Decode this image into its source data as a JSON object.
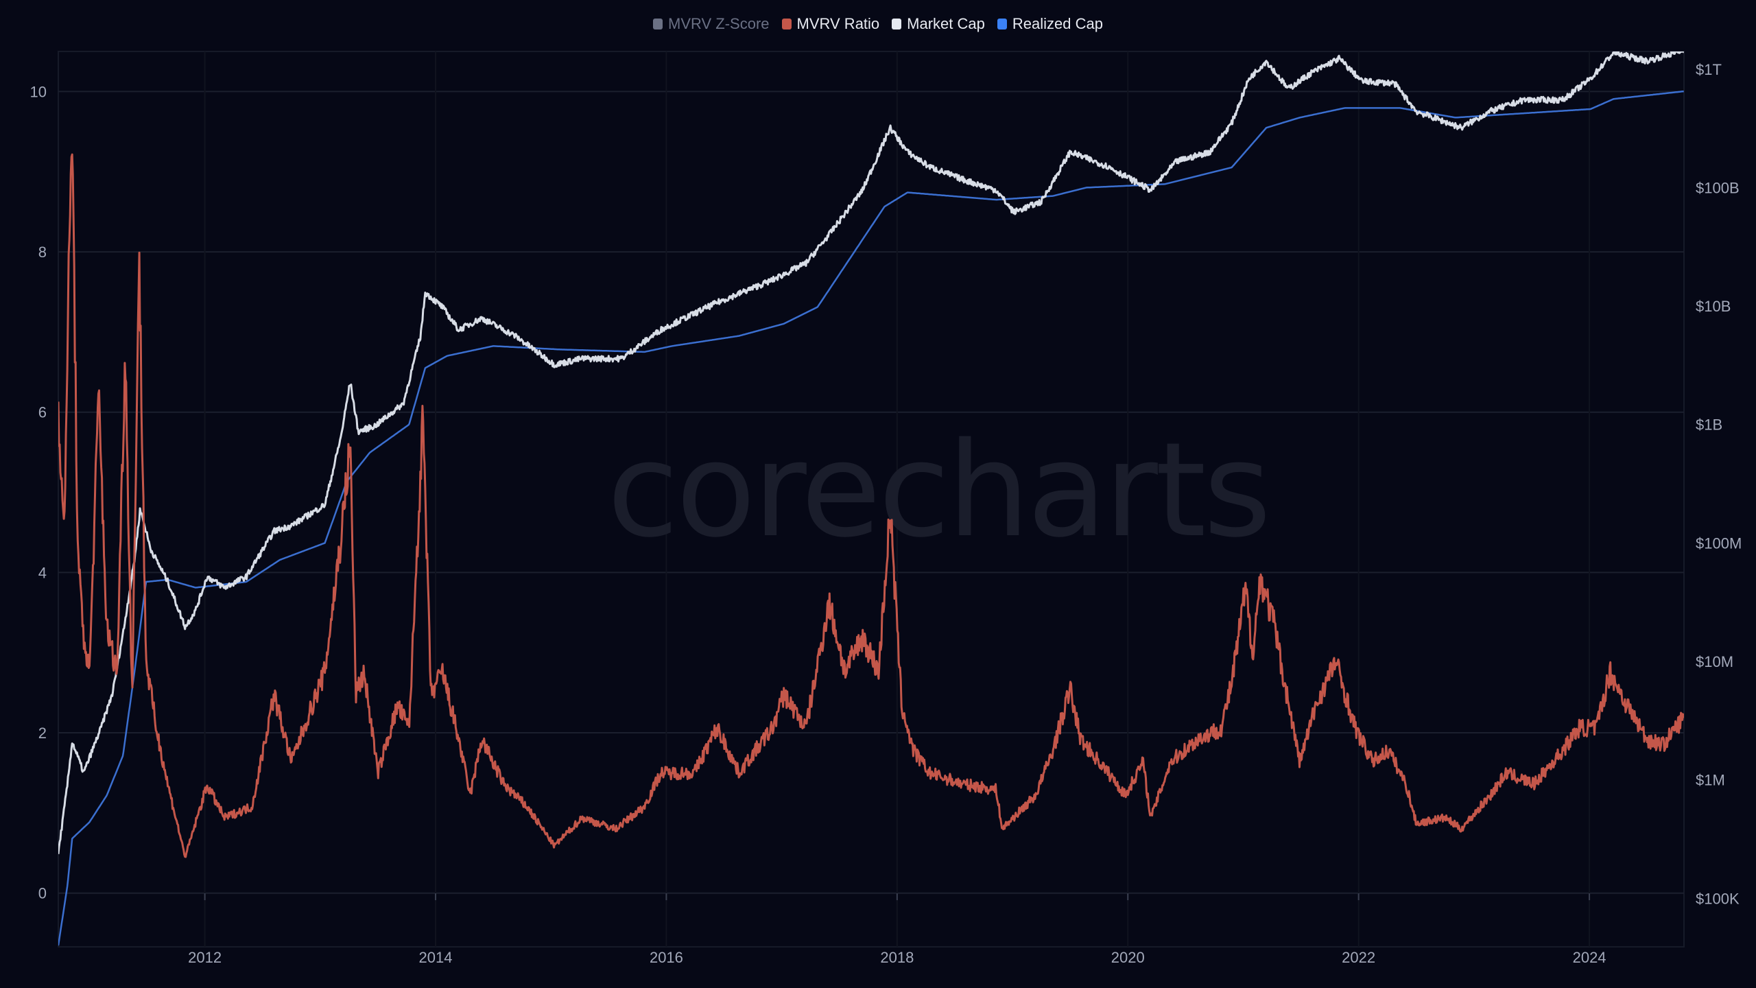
{
  "legend": [
    {
      "label": "MVRV Z-Score",
      "color": "#6b7185",
      "text_color": "#6b7185",
      "visible": false
    },
    {
      "label": "MVRV Ratio",
      "color": "#c4574a",
      "text_color": "#e8ebf2",
      "visible": true
    },
    {
      "label": "Market Cap",
      "color": "#e6eaf2",
      "text_color": "#e8ebf2",
      "visible": true
    },
    {
      "label": "Realized Cap",
      "color": "#3b82f6",
      "text_color": "#e8ebf2",
      "visible": true
    }
  ],
  "watermark": "corecharts",
  "chart_data": {
    "type": "line",
    "x_ticks": [
      "2012",
      "2014",
      "2016",
      "2018",
      "2020",
      "2022",
      "2024"
    ],
    "xlim": [
      2010.73,
      2024.82
    ],
    "left_axis": {
      "ticks": [
        "0",
        "2",
        "4",
        "6",
        "8",
        "10"
      ],
      "ylim": [
        -0.67,
        10.5
      ],
      "scale": "linear"
    },
    "right_axis": {
      "ticks": [
        "$100K",
        "$1M",
        "$10M",
        "$100M",
        "$1B",
        "$10B",
        "$100B",
        "$1T"
      ],
      "ylim": [
        39000,
        1410000000000
      ],
      "scale": "log"
    },
    "grid": true,
    "legend_position": "top",
    "series": [
      {
        "name": "MVRV Ratio",
        "axis": "left",
        "color": "#c4574a",
        "points": [
          [
            2010.73,
            6.1
          ],
          [
            2010.78,
            4.4
          ],
          [
            2010.81,
            6.95
          ],
          [
            2010.85,
            9.54
          ],
          [
            2010.9,
            4.15
          ],
          [
            2010.95,
            3.2
          ],
          [
            2011.0,
            2.75
          ],
          [
            2011.08,
            6.25
          ],
          [
            2011.15,
            3.3
          ],
          [
            2011.24,
            2.75
          ],
          [
            2011.31,
            6.8
          ],
          [
            2011.37,
            2.4
          ],
          [
            2011.43,
            7.96
          ],
          [
            2011.49,
            2.9
          ],
          [
            2011.58,
            2.05
          ],
          [
            2011.68,
            1.35
          ],
          [
            2011.83,
            0.45
          ],
          [
            2012.02,
            1.35
          ],
          [
            2012.17,
            0.94
          ],
          [
            2012.41,
            1.08
          ],
          [
            2012.6,
            2.48
          ],
          [
            2012.75,
            1.64
          ],
          [
            2013.04,
            2.76
          ],
          [
            2013.18,
            4.43
          ],
          [
            2013.26,
            5.6
          ],
          [
            2013.31,
            2.48
          ],
          [
            2013.38,
            2.76
          ],
          [
            2013.5,
            1.5
          ],
          [
            2013.67,
            2.34
          ],
          [
            2013.77,
            2.06
          ],
          [
            2013.89,
            5.9
          ],
          [
            2013.96,
            2.48
          ],
          [
            2014.06,
            2.76
          ],
          [
            2014.2,
            1.92
          ],
          [
            2014.3,
            1.22
          ],
          [
            2014.4,
            1.92
          ],
          [
            2014.59,
            1.36
          ],
          [
            2014.79,
            1.08
          ],
          [
            2015.03,
            0.59
          ],
          [
            2015.27,
            0.94
          ],
          [
            2015.56,
            0.8
          ],
          [
            2015.81,
            1.08
          ],
          [
            2015.95,
            1.5
          ],
          [
            2016.24,
            1.5
          ],
          [
            2016.44,
            2.06
          ],
          [
            2016.63,
            1.5
          ],
          [
            2016.92,
            2.06
          ],
          [
            2017.02,
            2.48
          ],
          [
            2017.21,
            2.06
          ],
          [
            2017.41,
            3.62
          ],
          [
            2017.55,
            2.76
          ],
          [
            2017.7,
            3.2
          ],
          [
            2017.84,
            2.76
          ],
          [
            2017.94,
            4.78
          ],
          [
            2018.04,
            2.34
          ],
          [
            2018.14,
            1.78
          ],
          [
            2018.28,
            1.5
          ],
          [
            2018.57,
            1.36
          ],
          [
            2018.86,
            1.29
          ],
          [
            2018.91,
            0.8
          ],
          [
            2019.2,
            1.22
          ],
          [
            2019.35,
            1.78
          ],
          [
            2019.5,
            2.55
          ],
          [
            2019.59,
            1.92
          ],
          [
            2019.83,
            1.5
          ],
          [
            2019.98,
            1.22
          ],
          [
            2020.13,
            1.64
          ],
          [
            2020.2,
            0.94
          ],
          [
            2020.37,
            1.64
          ],
          [
            2020.61,
            1.92
          ],
          [
            2020.81,
            2.06
          ],
          [
            2020.9,
            2.62
          ],
          [
            2021.02,
            3.8
          ],
          [
            2021.08,
            3.0
          ],
          [
            2021.15,
            3.94
          ],
          [
            2021.27,
            3.34
          ],
          [
            2021.34,
            2.76
          ],
          [
            2021.49,
            1.64
          ],
          [
            2021.63,
            2.34
          ],
          [
            2021.8,
            2.9
          ],
          [
            2021.97,
            2.06
          ],
          [
            2022.12,
            1.64
          ],
          [
            2022.26,
            1.78
          ],
          [
            2022.41,
            1.36
          ],
          [
            2022.5,
            0.87
          ],
          [
            2022.75,
            0.94
          ],
          [
            2022.89,
            0.8
          ],
          [
            2023.14,
            1.22
          ],
          [
            2023.28,
            1.5
          ],
          [
            2023.52,
            1.36
          ],
          [
            2023.77,
            1.78
          ],
          [
            2023.91,
            2.06
          ],
          [
            2024.06,
            2.06
          ],
          [
            2024.18,
            2.76
          ],
          [
            2024.3,
            2.41
          ],
          [
            2024.5,
            1.92
          ],
          [
            2024.64,
            1.85
          ],
          [
            2024.82,
            2.2
          ]
        ]
      },
      {
        "name": "Market Cap",
        "axis": "right",
        "color": "#d8dde6",
        "points": [
          [
            2010.73,
            240000.0
          ],
          [
            2010.81,
            930000.0
          ],
          [
            2010.85,
            2100000.0
          ],
          [
            2010.95,
            1150000.0
          ],
          [
            2011.1,
            2750000.0
          ],
          [
            2011.2,
            5400000.0
          ],
          [
            2011.3,
            19500000.0
          ],
          [
            2011.39,
            72000000.0
          ],
          [
            2011.44,
            195000000.0
          ],
          [
            2011.53,
            89000000.0
          ],
          [
            2011.68,
            47000000.0
          ],
          [
            2011.83,
            19500000.0
          ],
          [
            2011.92,
            27000000.0
          ],
          [
            2012.02,
            52000000.0
          ],
          [
            2012.17,
            42000000.0
          ],
          [
            2012.36,
            52000000.0
          ],
          [
            2012.6,
            126000000.0
          ],
          [
            2012.75,
            140000000.0
          ],
          [
            2013.04,
            210000000.0
          ],
          [
            2013.18,
            790000000.0
          ],
          [
            2013.26,
            2300000000.0
          ],
          [
            2013.33,
            870000000.0
          ],
          [
            2013.48,
            980000000.0
          ],
          [
            2013.72,
            1500000000.0
          ],
          [
            2013.87,
            5600000000.0
          ],
          [
            2013.91,
            13000000000.0
          ],
          [
            2014.06,
            9800000000.0
          ],
          [
            2014.2,
            6300000000.0
          ],
          [
            2014.4,
            7900000000.0
          ],
          [
            2014.69,
            5600000000.0
          ],
          [
            2015.03,
            3200000000.0
          ],
          [
            2015.27,
            3600000000.0
          ],
          [
            2015.61,
            3600000000.0
          ],
          [
            2015.95,
            6300000000.0
          ],
          [
            2016.44,
            10700000000.0
          ],
          [
            2016.92,
            16600000000.0
          ],
          [
            2017.21,
            23000000000.0
          ],
          [
            2017.41,
            40000000000.0
          ],
          [
            2017.7,
            95000000000.0
          ],
          [
            2017.94,
            320000000000.0
          ],
          [
            2018.09,
            200000000000.0
          ],
          [
            2018.28,
            150000000000.0
          ],
          [
            2018.57,
            117000000000.0
          ],
          [
            2018.86,
            95000000000.0
          ],
          [
            2019.01,
            62000000000.0
          ],
          [
            2019.25,
            76000000000.0
          ],
          [
            2019.5,
            200000000000.0
          ],
          [
            2019.83,
            150000000000.0
          ],
          [
            2020.2,
            95000000000.0
          ],
          [
            2020.42,
            166000000000.0
          ],
          [
            2020.71,
            200000000000.0
          ],
          [
            2020.9,
            350000000000.0
          ],
          [
            2021.05,
            830000000000.0
          ],
          [
            2021.2,
            1170000000000.0
          ],
          [
            2021.39,
            680000000000.0
          ],
          [
            2021.59,
            930000000000.0
          ],
          [
            2021.83,
            1230000000000.0
          ],
          [
            2022.03,
            790000000000.0
          ],
          [
            2022.31,
            760000000000.0
          ],
          [
            2022.5,
            440000000000.0
          ],
          [
            2022.89,
            320000000000.0
          ],
          [
            2023.14,
            440000000000.0
          ],
          [
            2023.43,
            550000000000.0
          ],
          [
            2023.77,
            550000000000.0
          ],
          [
            2024.01,
            830000000000.0
          ],
          [
            2024.21,
            1380000000000.0
          ],
          [
            2024.5,
            1170000000000.0
          ],
          [
            2024.82,
            1450000000000.0
          ]
        ]
      },
      {
        "name": "Realized Cap",
        "axis": "right",
        "color": "#3b6fd0",
        "points": [
          [
            2010.73,
            40000.0
          ],
          [
            2010.81,
            130000.0
          ],
          [
            2010.85,
            320000.0
          ],
          [
            2011.0,
            440000.0
          ],
          [
            2011.15,
            740000.0
          ],
          [
            2011.29,
            1600000.0
          ],
          [
            2011.39,
            8100000.0
          ],
          [
            2011.49,
            47000000.0
          ],
          [
            2011.68,
            49000000.0
          ],
          [
            2011.92,
            42000000.0
          ],
          [
            2012.36,
            47000000.0
          ],
          [
            2012.65,
            72000000.0
          ],
          [
            2013.04,
            100000000.0
          ],
          [
            2013.23,
            330000000.0
          ],
          [
            2013.43,
            580000000.0
          ],
          [
            2013.77,
            1000000000.0
          ],
          [
            2013.91,
            3000000000.0
          ],
          [
            2014.1,
            3800000000.0
          ],
          [
            2014.5,
            4600000000.0
          ],
          [
            2015.08,
            4300000000.0
          ],
          [
            2015.81,
            4100000000.0
          ],
          [
            2016.05,
            4600000000.0
          ],
          [
            2016.63,
            5600000000.0
          ],
          [
            2017.02,
            7100000000.0
          ],
          [
            2017.31,
            9800000000.0
          ],
          [
            2017.6,
            26000000000.0
          ],
          [
            2017.89,
            69000000000.0
          ],
          [
            2018.09,
            91000000000.0
          ],
          [
            2018.86,
            79000000000.0
          ],
          [
            2019.35,
            85000000000.0
          ],
          [
            2019.64,
            100000000000.0
          ],
          [
            2020.32,
            107000000000.0
          ],
          [
            2020.9,
            148000000000.0
          ],
          [
            2021.2,
            320000000000.0
          ],
          [
            2021.49,
            390000000000.0
          ],
          [
            2021.88,
            470000000000.0
          ],
          [
            2022.36,
            470000000000.0
          ],
          [
            2022.84,
            390000000000.0
          ],
          [
            2024.01,
            460000000000.0
          ],
          [
            2024.21,
            560000000000.0
          ],
          [
            2024.82,
            650000000000.0
          ]
        ]
      }
    ]
  }
}
